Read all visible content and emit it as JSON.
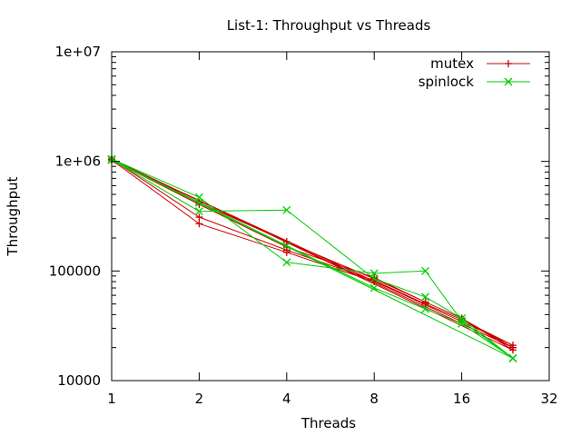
{
  "chart_data": {
    "type": "line",
    "title": "List-1: Throughput vs Threads",
    "xlabel": "Threads",
    "ylabel": "Throughput",
    "x_scale": "log2",
    "y_scale": "log10",
    "xlim": [
      1,
      32
    ],
    "ylim": [
      10000,
      10000000
    ],
    "x_ticks": [
      1,
      2,
      4,
      8,
      16,
      32
    ],
    "x_tick_labels": [
      "1",
      "2",
      "4",
      "8",
      "16",
      "32"
    ],
    "y_ticks": [
      10000,
      100000,
      1000000,
      10000000
    ],
    "y_tick_labels": [
      "10000",
      "100000",
      "1e+06",
      "1e+07"
    ],
    "grid": false,
    "legend_position": "top-right",
    "series": [
      {
        "name": "mutex",
        "color": "#cc0000",
        "marker": "plus",
        "points": [
          [
            1,
            1050000
          ],
          [
            2,
            420000
          ],
          [
            4,
            185000
          ],
          [
            8,
            85000
          ],
          [
            12,
            52000
          ],
          [
            16,
            37000
          ],
          [
            24,
            19000
          ],
          [
            1,
            1050000
          ],
          [
            2,
            310000
          ],
          [
            4,
            155000
          ],
          [
            8,
            82000
          ],
          [
            12,
            50000
          ],
          [
            16,
            36000
          ],
          [
            24,
            21000
          ],
          [
            1,
            1030000
          ],
          [
            2,
            270000
          ],
          [
            4,
            148000
          ],
          [
            8,
            80000
          ],
          [
            12,
            50000
          ],
          [
            16,
            36000
          ],
          [
            24,
            20000
          ],
          [
            1,
            1030000
          ],
          [
            2,
            405000
          ],
          [
            4,
            165000
          ],
          [
            8,
            87000
          ],
          [
            12,
            52000
          ],
          [
            16,
            37000
          ],
          [
            24,
            20000
          ]
        ]
      },
      {
        "name": "spinlock",
        "color": "#00cc00",
        "marker": "cross",
        "points": [
          [
            1,
            1050000
          ],
          [
            2,
            470000
          ],
          [
            4,
            120000
          ],
          [
            8,
            95000
          ],
          [
            12,
            100000
          ],
          [
            16,
            35000
          ],
          [
            24,
            16000
          ],
          [
            1,
            1040000
          ],
          [
            2,
            350000
          ],
          [
            4,
            360000
          ],
          [
            8,
            85000
          ],
          [
            12,
            58000
          ],
          [
            16,
            37000
          ],
          [
            24,
            16000
          ],
          [
            1,
            1030000
          ],
          [
            2,
            420000
          ],
          [
            4,
            170000
          ],
          [
            8,
            70000
          ],
          [
            12,
            45000
          ],
          [
            16,
            33000
          ],
          [
            24,
            16000
          ]
        ]
      }
    ]
  }
}
